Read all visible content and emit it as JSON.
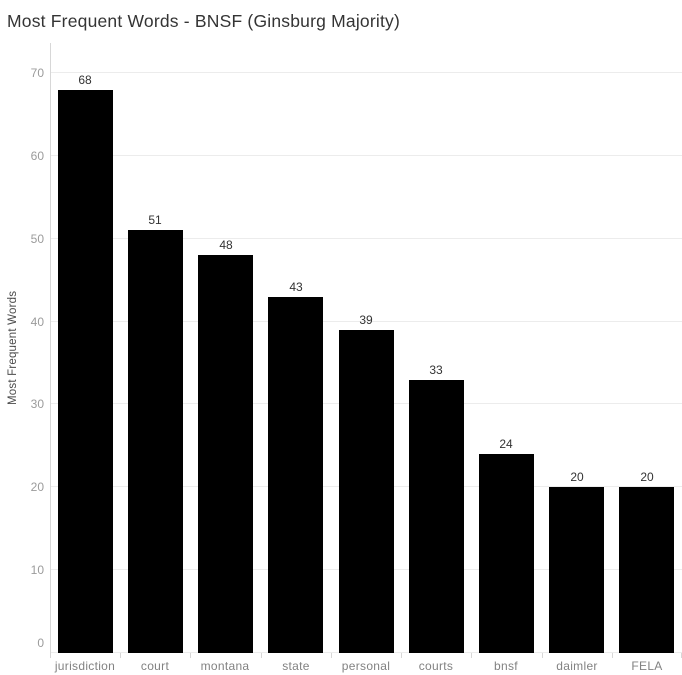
{
  "title": "Most Frequent Words - BNSF (Ginsburg Majority)",
  "chart_data": {
    "type": "bar",
    "title": "Most Frequent Words - BNSF (Ginsburg Majority)",
    "categories": [
      "jurisdiction",
      "court",
      "montana",
      "state",
      "personal",
      "courts",
      "bnsf",
      "daimler",
      "FELA"
    ],
    "values": [
      68,
      51,
      48,
      43,
      39,
      33,
      24,
      20,
      20
    ],
    "xlabel": "",
    "ylabel": "Most Frequent Words",
    "ylim": [
      0,
      70
    ],
    "yticks": [
      0,
      10,
      20,
      30,
      40,
      50,
      60,
      70
    ],
    "grid": true,
    "legend": "none",
    "bar_color": "#000000",
    "background_color": "#ffffff"
  }
}
